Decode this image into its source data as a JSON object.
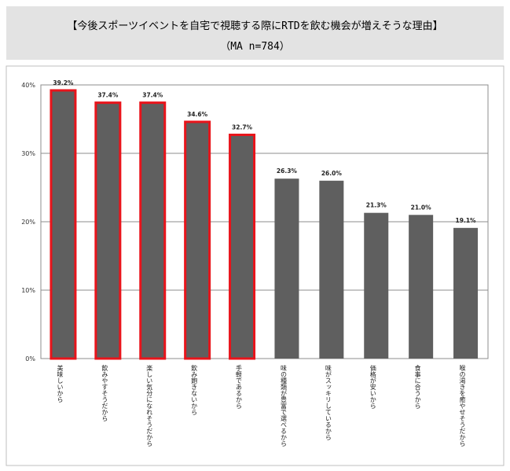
{
  "chart_data": {
    "type": "bar",
    "title": "【今後スポーツイベントを自宅で視聴する際にRTDを飲む機会が増えそうな理由】",
    "subtitle": "（MA n=784）",
    "categories": [
      "美味しいから",
      "飲みやすそうだから",
      "楽しい気分になれそうだから",
      "飲み飽きないから",
      "手軽であるから",
      "味の種類が豊富で選べるから",
      "味がスッキリしているから",
      "価格が安いから",
      "食事に合うから",
      "喉の渇きを癒やせそうだから"
    ],
    "values": [
      39.2,
      37.4,
      37.4,
      34.6,
      32.7,
      26.3,
      26.0,
      21.3,
      21.0,
      19.1
    ],
    "data_labels": [
      "39.2%",
      "37.4%",
      "37.4%",
      "34.6%",
      "32.7%",
      "26.3%",
      "26.0%",
      "21.3%",
      "21.0%",
      "19.1%"
    ],
    "highlighted": [
      true,
      true,
      true,
      true,
      true,
      false,
      false,
      false,
      false,
      false
    ],
    "ylim": [
      0,
      40
    ],
    "yticks": [
      0,
      10,
      20,
      30,
      40
    ],
    "ytick_labels": [
      "0%",
      "10%",
      "20%",
      "30%",
      "40%"
    ],
    "grid": true,
    "bar_color": "#5f5f5f",
    "highlight_color": "#e8141b"
  }
}
